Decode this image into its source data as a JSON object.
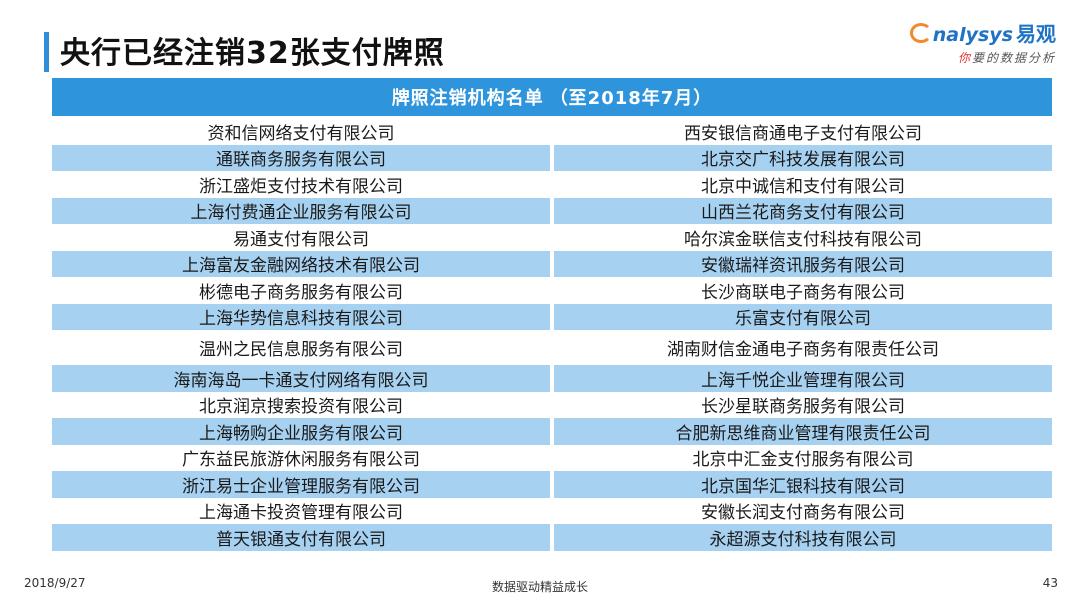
{
  "slide": {
    "title": "央行已经注销32张支付牌照"
  },
  "logo": {
    "brand_en": "nalysys",
    "brand_cn": "易观",
    "slogan_accent": "你",
    "slogan_rest": "要的数据分析"
  },
  "table": {
    "header": "牌照注销机构名单",
    "header_note": "（至2018年7月）",
    "rows": [
      [
        "资和信网络支付有限公司",
        "西安银信商通电子支付有限公司"
      ],
      [
        "通联商务服务有限公司",
        "北京交广科技发展有限公司"
      ],
      [
        "浙江盛炬支付技术有限公司",
        "北京中诚信和支付有限公司"
      ],
      [
        "上海付费通企业服务有限公司",
        "山西兰花商务支付有限公司"
      ],
      [
        "易通支付有限公司",
        "哈尔滨金联信支付科技有限公司"
      ],
      [
        "上海富友金融网络技术有限公司",
        "安徽瑞祥资讯服务有限公司"
      ],
      [
        "彬德电子商务服务有限公司",
        "长沙商联电子商务有限公司"
      ],
      [
        "上海华势信息科技有限公司",
        "乐富支付有限公司"
      ],
      [
        "温州之民信息服务有限公司",
        "湖南财信金通电子商务有限责任公司"
      ],
      [
        "海南海岛一卡通支付网络有限公司",
        "上海千悦企业管理有限公司"
      ],
      [
        "北京润京搜索投资有限公司",
        "长沙星联商务服务有限公司"
      ],
      [
        "上海畅购企业服务有限公司",
        "合肥新思维商业管理有限责任公司"
      ],
      [
        "广东益民旅游休闲服务有限公司",
        "北京中汇金支付服务有限公司"
      ],
      [
        "浙江易士企业管理服务有限公司",
        "北京国华汇银科技有限公司"
      ],
      [
        "上海通卡投资管理有限公司",
        "安徽长润支付商务有限公司"
      ],
      [
        "普天银通支付有限公司",
        "永超源支付科技有限公司"
      ]
    ]
  },
  "footer": {
    "date": "2018/9/27",
    "slogan": "数据驱动精益成长",
    "page": "43"
  }
}
